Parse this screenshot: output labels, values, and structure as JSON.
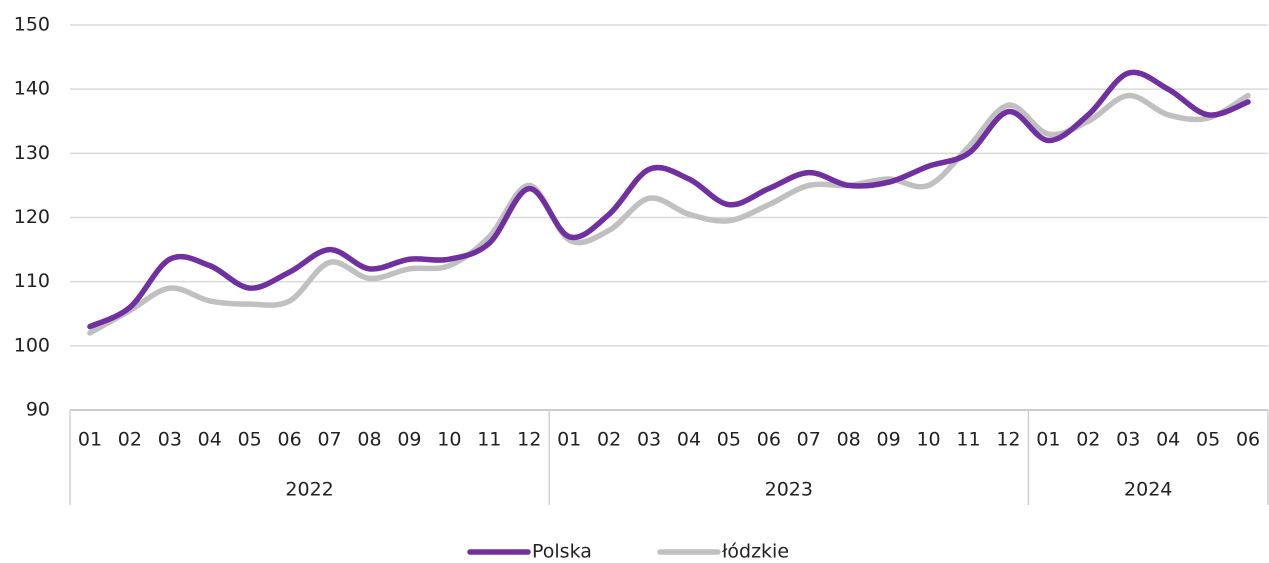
{
  "chart_data": {
    "type": "line",
    "categories": [
      {
        "label": "01",
        "group": "2022"
      },
      {
        "label": "02",
        "group": "2022"
      },
      {
        "label": "03",
        "group": "2022"
      },
      {
        "label": "04",
        "group": "2022"
      },
      {
        "label": "05",
        "group": "2022"
      },
      {
        "label": "06",
        "group": "2022"
      },
      {
        "label": "07",
        "group": "2022"
      },
      {
        "label": "08",
        "group": "2022"
      },
      {
        "label": "09",
        "group": "2022"
      },
      {
        "label": "10",
        "group": "2022"
      },
      {
        "label": "11",
        "group": "2022"
      },
      {
        "label": "12",
        "group": "2022"
      },
      {
        "label": "01",
        "group": "2023"
      },
      {
        "label": "02",
        "group": "2023"
      },
      {
        "label": "03",
        "group": "2023"
      },
      {
        "label": "04",
        "group": "2023"
      },
      {
        "label": "05",
        "group": "2023"
      },
      {
        "label": "06",
        "group": "2023"
      },
      {
        "label": "07",
        "group": "2023"
      },
      {
        "label": "08",
        "group": "2023"
      },
      {
        "label": "09",
        "group": "2023"
      },
      {
        "label": "10",
        "group": "2023"
      },
      {
        "label": "11",
        "group": "2023"
      },
      {
        "label": "12",
        "group": "2023"
      },
      {
        "label": "01",
        "group": "2024"
      },
      {
        "label": "02",
        "group": "2024"
      },
      {
        "label": "03",
        "group": "2024"
      },
      {
        "label": "04",
        "group": "2024"
      },
      {
        "label": "05",
        "group": "2024"
      },
      {
        "label": "06",
        "group": "2024"
      }
    ],
    "series": [
      {
        "name": "Polska",
        "color": "#7030a0",
        "values": [
          103,
          106,
          113.5,
          112.5,
          109,
          111.5,
          115,
          112,
          113.5,
          113.5,
          116,
          124.5,
          117,
          120.5,
          127.5,
          126,
          122,
          124.5,
          127,
          125,
          125.5,
          128,
          130,
          136.5,
          132,
          136,
          142.5,
          140,
          136,
          138
        ]
      },
      {
        "name": "łódzkie",
        "color": "#c0c0c0",
        "values": [
          102,
          105.5,
          109,
          107,
          106.5,
          107,
          113,
          110.5,
          112,
          112.5,
          117,
          125,
          116.5,
          118,
          123,
          120.5,
          119.5,
          122,
          125,
          125,
          126,
          125,
          131,
          137.5,
          133,
          135,
          139,
          136,
          135.5,
          139
        ]
      }
    ],
    "ylim": [
      90,
      150
    ],
    "yticks": [
      90,
      100,
      110,
      120,
      130,
      140,
      150
    ],
    "grid": true,
    "legend": "bottom"
  }
}
